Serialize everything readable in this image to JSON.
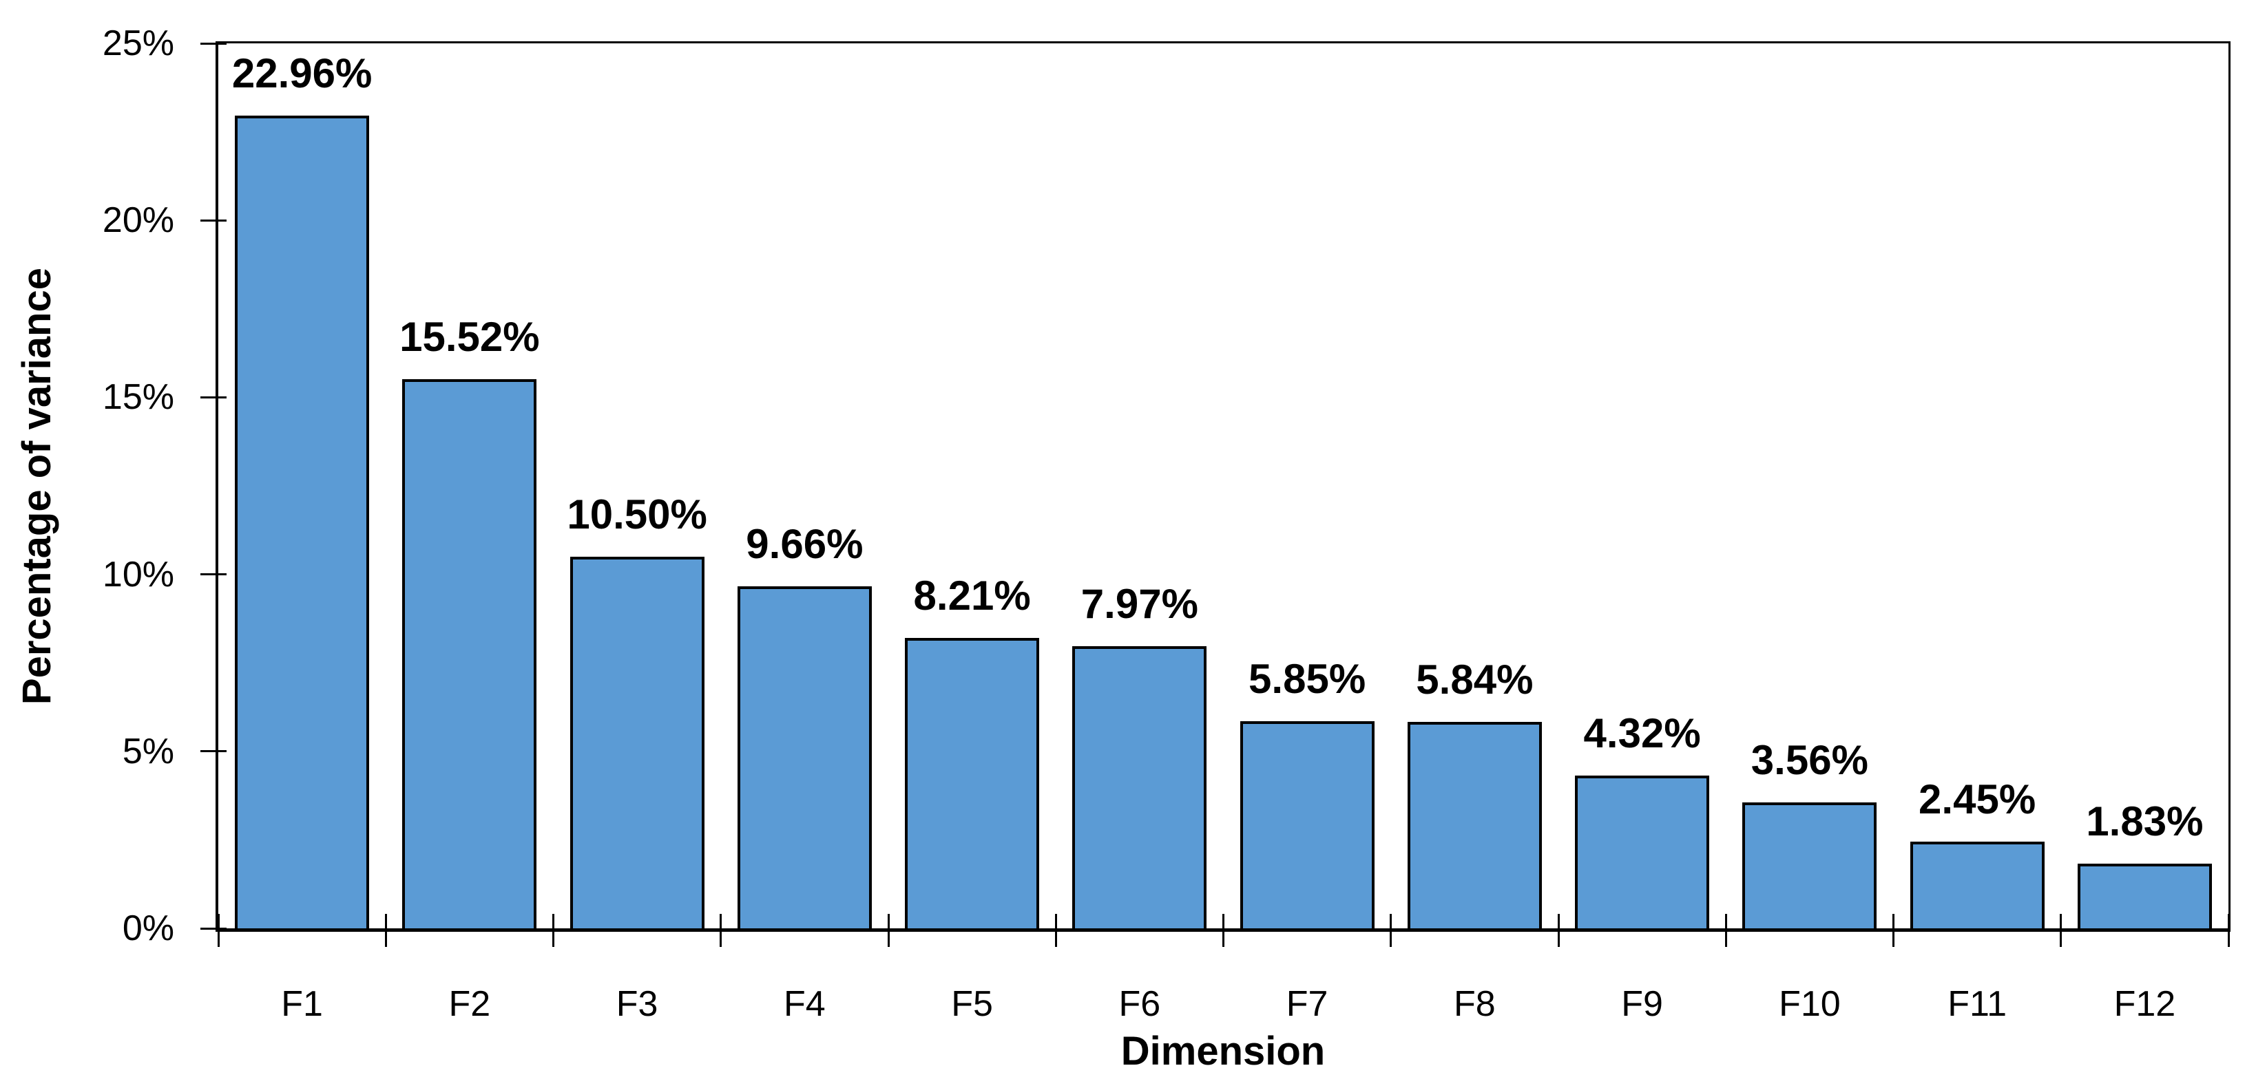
{
  "chart_data": {
    "type": "bar",
    "title": "",
    "xlabel": "Dimension",
    "ylabel": "Percentage of variance",
    "categories": [
      "F1",
      "F2",
      "F3",
      "F4",
      "F5",
      "F6",
      "F7",
      "F8",
      "F9",
      "F10",
      "F11",
      "F12"
    ],
    "values": [
      22.96,
      15.52,
      10.5,
      9.66,
      8.21,
      7.97,
      5.85,
      5.84,
      4.32,
      3.56,
      2.45,
      1.83
    ],
    "data_labels": [
      "22.96%",
      "15.52%",
      "10.50%",
      "9.66%",
      "8.21%",
      "7.97%",
      "5.85%",
      "5.84%",
      "4.32%",
      "3.56%",
      "2.45%",
      "1.83%"
    ],
    "ylim": [
      0,
      25
    ],
    "ytick_values": [
      0,
      5,
      10,
      15,
      20,
      25
    ],
    "ytick_labels": [
      "0%",
      "5%",
      "10%",
      "15%",
      "20%",
      "25%"
    ],
    "grid": false,
    "legend": false,
    "bar_fill": "#5B9BD5",
    "bar_border": "#000000",
    "axis_color": "#000000",
    "text_color": "#000000",
    "background": "#FFFFFF"
  }
}
